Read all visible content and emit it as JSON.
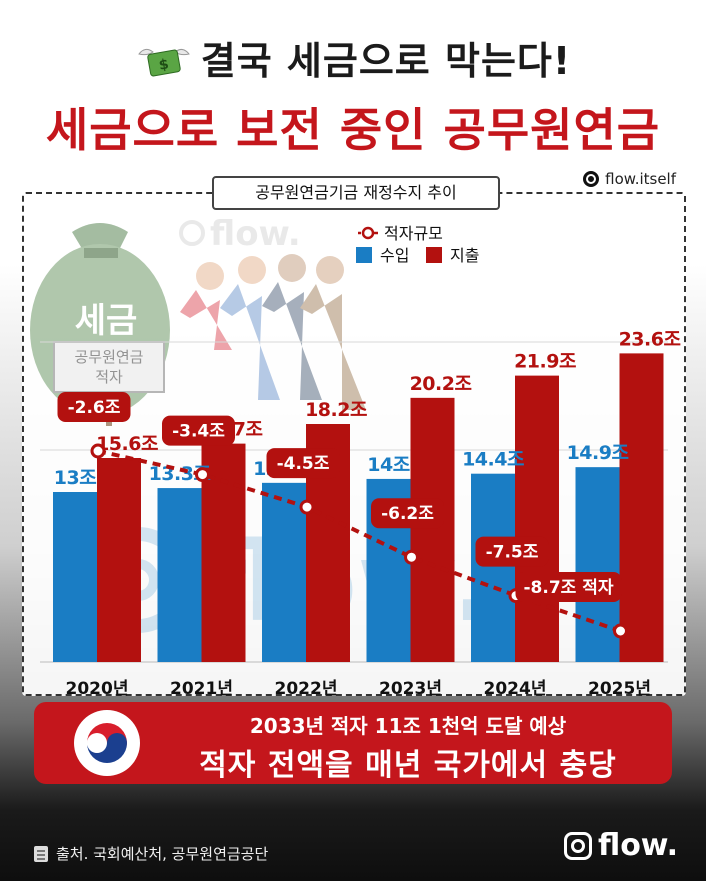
{
  "header": {
    "title_line1": "결국 세금으로 막는다!",
    "title_line2": "세금으로 보전 중인 공무원연금"
  },
  "brand": {
    "handle": "flow.itself",
    "logo_text": "flow."
  },
  "illustration": {
    "bag_label": "세금",
    "sign_line1": "공무원연금",
    "sign_line2": "적자"
  },
  "chart_data": {
    "type": "bar",
    "title": "공무원연금기금 재정수지 추이",
    "categories": [
      "2020년",
      "2021년",
      "2022년",
      "2023년",
      "2024년",
      "2025년"
    ],
    "series": [
      {
        "name": "수입",
        "color": "#1a7dc4",
        "values": [
          13,
          13.3,
          13.7,
          14,
          14.4,
          14.9
        ],
        "labels": [
          "13조",
          "13.3조",
          "13.7조",
          "14조",
          "14.4조",
          "14.9조"
        ]
      },
      {
        "name": "지출",
        "color": "#b3110f",
        "values": [
          15.6,
          16.7,
          18.2,
          20.2,
          21.9,
          23.6
        ],
        "labels": [
          "15.6조",
          "16.7조",
          "18.2조",
          "20.2조",
          "21.9조",
          "23.6조"
        ]
      }
    ],
    "deficit": {
      "name": "적자규모",
      "type": "line",
      "color": "#b3110f",
      "values": [
        -2.6,
        -3.4,
        -4.5,
        -6.2,
        -7.5,
        -8.7
      ],
      "labels": [
        "-2.6조",
        "-3.4조",
        "-4.5조",
        "-6.2조",
        "-7.5조",
        "-8.7조 적자"
      ]
    },
    "bar_ylim": [
      0,
      26
    ],
    "legend_position": "top-right"
  },
  "banner": {
    "line1": "2033년 적자 11조 1천억 도달 예상",
    "line2": "적자 전액을 매년 국가에서 충당"
  },
  "footer": {
    "source": "출처. 국회예산처, 공무원연금공단"
  },
  "colors": {
    "accent_red": "#c4161c",
    "income_blue": "#1a7dc4",
    "expense_red": "#b3110f"
  }
}
